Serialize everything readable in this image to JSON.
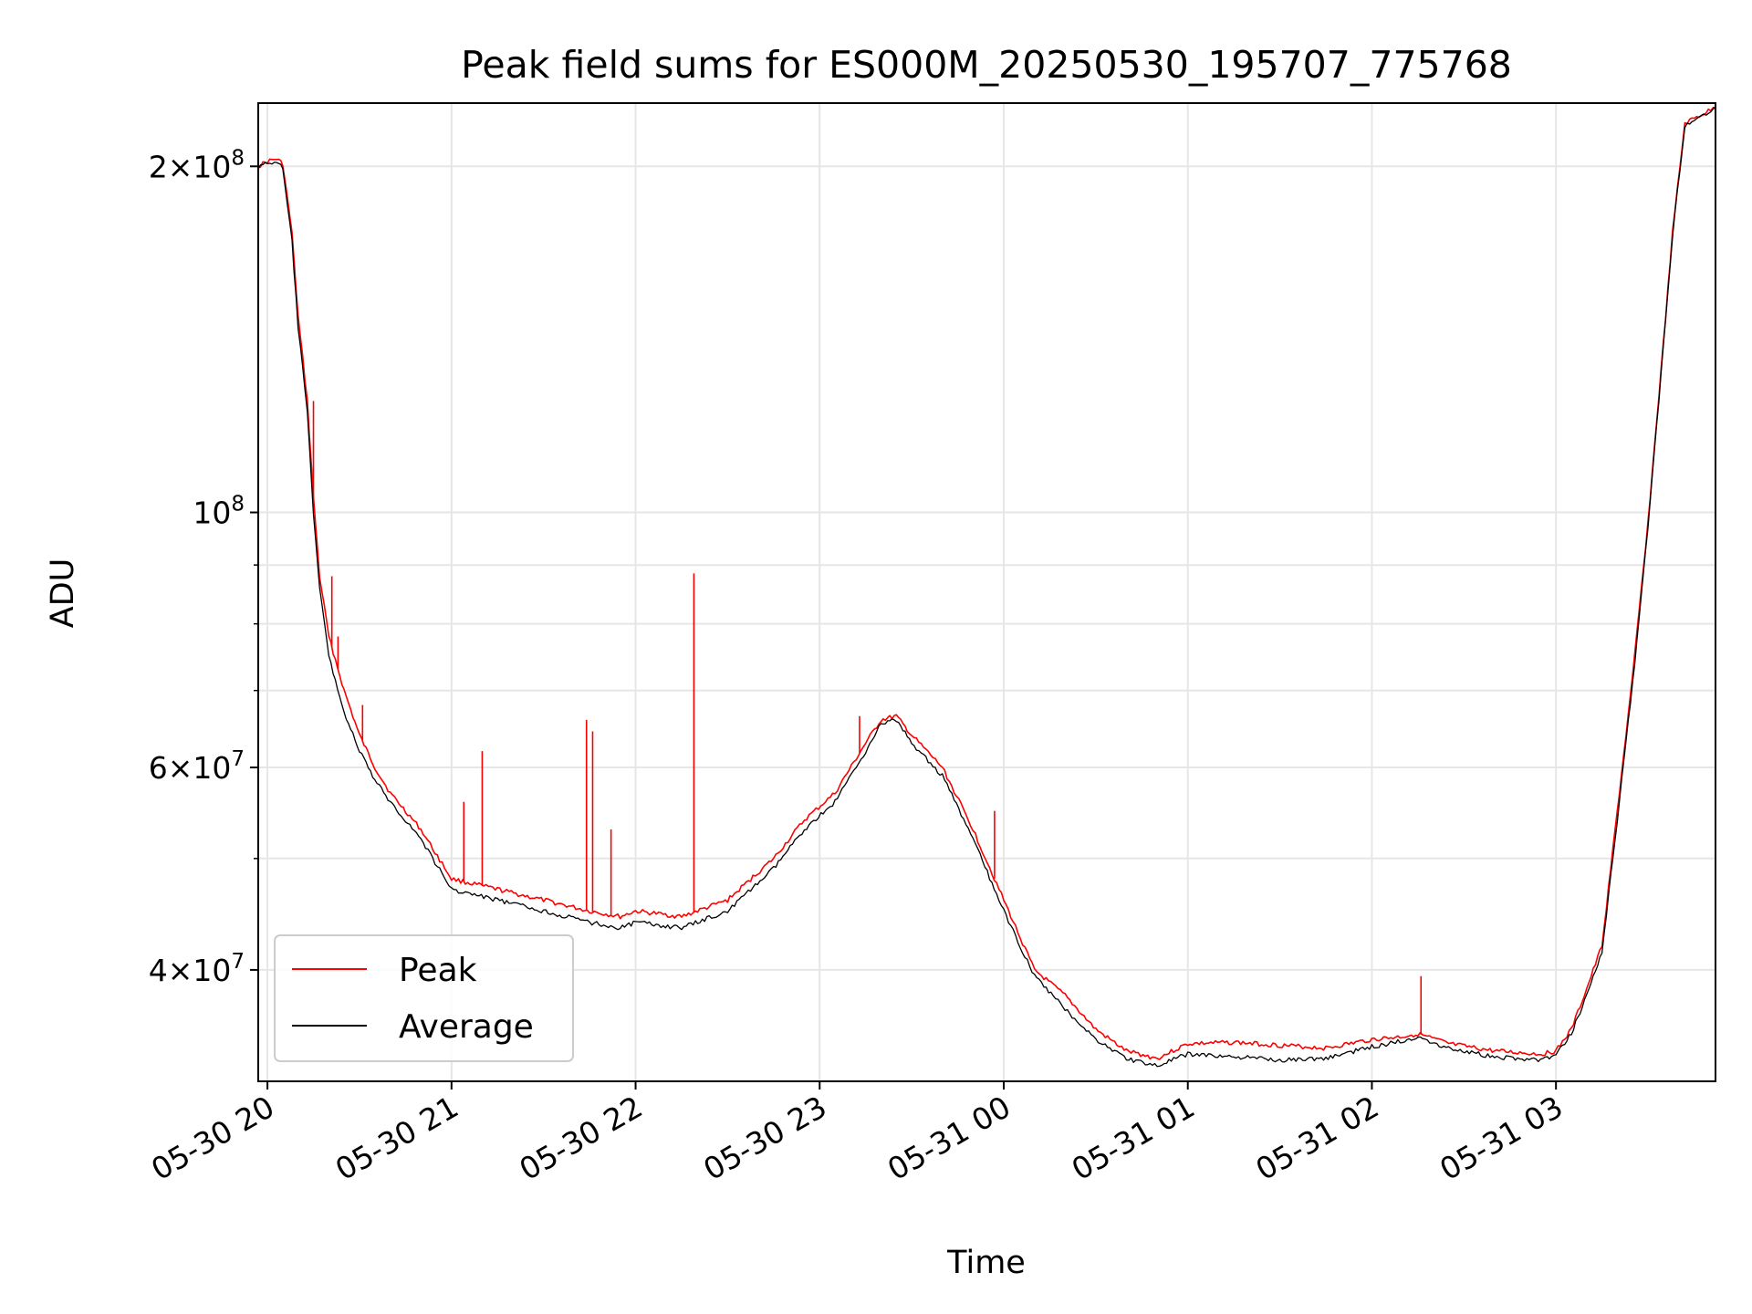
{
  "chart_data": {
    "type": "line",
    "title": "Peak field sums for ES000M_20250530_195707_775768",
    "xlabel": "Time",
    "ylabel": "ADU",
    "y_scale": "log",
    "grid": true,
    "legend_position": "lower-left",
    "xlim": [
      "2025-05-30 19:57",
      "2025-05-31 03:52"
    ],
    "ylim": [
      32000000,
      227000000
    ],
    "x_ticks": [
      "05-30 20",
      "05-30 21",
      "05-30 22",
      "05-30 23",
      "05-31 00",
      "05-31 01",
      "05-31 02",
      "05-31 03"
    ],
    "x_tick_times": [
      "2025-05-30 20:00",
      "2025-05-30 21:00",
      "2025-05-30 22:00",
      "2025-05-30 23:00",
      "2025-05-31 00:00",
      "2025-05-31 01:00",
      "2025-05-31 02:00",
      "2025-05-31 03:00"
    ],
    "y_ticks": [
      {
        "value": 40000000,
        "mantissa": "4",
        "exponent": "7"
      },
      {
        "value": 60000000,
        "mantissa": "6",
        "exponent": "7"
      },
      {
        "value": 100000000,
        "mantissa": "",
        "exponent": "8"
      },
      {
        "value": 200000000,
        "mantissa": "2",
        "exponent": "8"
      }
    ],
    "y_minor_ticks": [
      50000000,
      70000000,
      80000000,
      90000000
    ],
    "series": [
      {
        "name": "Peak",
        "color": "#ff0000",
        "x": [
          "2025-05-30 19:57",
          "2025-05-30 20:00",
          "2025-05-30 20:03",
          "2025-05-30 20:05",
          "2025-05-30 20:08",
          "2025-05-30 20:10",
          "2025-05-30 20:13",
          "2025-05-30 20:15",
          "2025-05-30 20:17",
          "2025-05-30 20:20",
          "2025-05-30 20:25",
          "2025-05-30 20:30",
          "2025-05-30 20:35",
          "2025-05-30 20:40",
          "2025-05-30 20:45",
          "2025-05-30 20:50",
          "2025-05-30 21:00",
          "2025-05-30 21:15",
          "2025-05-30 21:30",
          "2025-05-30 21:45",
          "2025-05-30 21:55",
          "2025-05-30 22:00",
          "2025-05-30 22:15",
          "2025-05-30 22:30",
          "2025-05-30 22:45",
          "2025-05-30 22:55",
          "2025-05-30 23:05",
          "2025-05-30 23:15",
          "2025-05-30 23:20",
          "2025-05-30 23:25",
          "2025-05-30 23:30",
          "2025-05-30 23:40",
          "2025-05-30 23:50",
          "2025-05-31 00:00",
          "2025-05-31 00:10",
          "2025-05-31 00:20",
          "2025-05-31 00:30",
          "2025-05-31 00:40",
          "2025-05-31 00:50",
          "2025-05-31 01:00",
          "2025-05-31 01:15",
          "2025-05-31 01:30",
          "2025-05-31 01:45",
          "2025-05-31 02:00",
          "2025-05-31 02:10",
          "2025-05-31 02:15",
          "2025-05-31 02:25",
          "2025-05-31 02:40",
          "2025-05-31 02:55",
          "2025-05-31 03:00",
          "2025-05-31 03:05",
          "2025-05-31 03:10",
          "2025-05-31 03:15",
          "2025-05-31 03:20",
          "2025-05-31 03:25",
          "2025-05-31 03:30",
          "2025-05-31 03:35",
          "2025-05-31 03:38",
          "2025-05-31 03:42",
          "2025-05-31 03:52"
        ],
        "y": [
          200000000,
          202000000,
          203000000,
          201000000,
          175000000,
          148000000,
          125000000,
          103000000,
          88000000,
          78000000,
          70000000,
          64000000,
          60000000,
          57000000,
          55000000,
          53000000,
          48000000,
          47000000,
          46000000,
          45000000,
          44500000,
          45000000,
          44500000,
          46000000,
          50000000,
          54000000,
          57000000,
          63000000,
          66000000,
          66500000,
          64000000,
          60000000,
          53000000,
          46000000,
          40000000,
          38000000,
          35500000,
          34000000,
          33500000,
          34500000,
          34600000,
          34400000,
          34200000,
          34800000,
          35000000,
          35200000,
          34500000,
          34000000,
          33800000,
          34000000,
          35500000,
          38500000,
          42000000,
          55000000,
          72000000,
          98000000,
          140000000,
          175000000,
          218000000,
          225000000
        ],
        "spikes": [
          {
            "x": "2025-05-30 20:15",
            "y": 125000000
          },
          {
            "x": "2025-05-30 20:21",
            "y": 88000000
          },
          {
            "x": "2025-05-30 20:23",
            "y": 78000000
          },
          {
            "x": "2025-05-30 20:31",
            "y": 68000000
          },
          {
            "x": "2025-05-30 21:04",
            "y": 56000000
          },
          {
            "x": "2025-05-30 21:10",
            "y": 62000000
          },
          {
            "x": "2025-05-30 21:44",
            "y": 66000000
          },
          {
            "x": "2025-05-30 21:46",
            "y": 64500000
          },
          {
            "x": "2025-05-30 21:52",
            "y": 53000000
          },
          {
            "x": "2025-05-30 22:19",
            "y": 88500000
          },
          {
            "x": "2025-05-30 23:13",
            "y": 66500000
          },
          {
            "x": "2025-05-30 23:57",
            "y": 55000000
          },
          {
            "x": "2025-05-31 02:16",
            "y": 39500000
          }
        ]
      },
      {
        "name": "Average",
        "color": "#000000",
        "x": [
          "2025-05-30 19:57",
          "2025-05-30 20:00",
          "2025-05-30 20:03",
          "2025-05-30 20:05",
          "2025-05-30 20:08",
          "2025-05-30 20:10",
          "2025-05-30 20:13",
          "2025-05-30 20:15",
          "2025-05-30 20:17",
          "2025-05-30 20:20",
          "2025-05-30 20:25",
          "2025-05-30 20:30",
          "2025-05-30 20:35",
          "2025-05-30 20:40",
          "2025-05-30 20:45",
          "2025-05-30 20:50",
          "2025-05-30 21:00",
          "2025-05-30 21:15",
          "2025-05-30 21:30",
          "2025-05-30 21:45",
          "2025-05-30 21:55",
          "2025-05-30 22:00",
          "2025-05-30 22:15",
          "2025-05-30 22:30",
          "2025-05-30 22:45",
          "2025-05-30 22:55",
          "2025-05-30 23:05",
          "2025-05-30 23:15",
          "2025-05-30 23:20",
          "2025-05-30 23:25",
          "2025-05-30 23:30",
          "2025-05-30 23:40",
          "2025-05-30 23:50",
          "2025-05-31 00:00",
          "2025-05-31 00:10",
          "2025-05-31 00:20",
          "2025-05-31 00:30",
          "2025-05-31 00:40",
          "2025-05-31 00:50",
          "2025-05-31 01:00",
          "2025-05-31 01:15",
          "2025-05-31 01:30",
          "2025-05-31 01:45",
          "2025-05-31 02:00",
          "2025-05-31 02:10",
          "2025-05-31 02:15",
          "2025-05-31 02:25",
          "2025-05-31 02:40",
          "2025-05-31 02:55",
          "2025-05-31 03:00",
          "2025-05-31 03:05",
          "2025-05-31 03:10",
          "2025-05-31 03:15",
          "2025-05-31 03:20",
          "2025-05-31 03:25",
          "2025-05-31 03:30",
          "2025-05-31 03:35",
          "2025-05-31 03:38",
          "2025-05-31 03:42",
          "2025-05-31 03:52"
        ],
        "y": [
          200000000,
          201000000,
          202000000,
          199000000,
          172000000,
          145000000,
          122000000,
          100000000,
          86000000,
          75000000,
          67000000,
          62000000,
          58500000,
          56000000,
          54000000,
          52000000,
          47000000,
          46000000,
          45000000,
          44000000,
          43500000,
          44000000,
          43500000,
          45000000,
          49000000,
          53000000,
          56000000,
          62000000,
          65500000,
          66000000,
          63000000,
          59000000,
          52000000,
          45000000,
          39500000,
          37000000,
          34800000,
          33500000,
          33000000,
          33800000,
          33600000,
          33400000,
          33500000,
          34300000,
          34700000,
          35000000,
          34200000,
          33600000,
          33400000,
          33700000,
          35200000,
          38000000,
          41500000,
          54000000,
          71000000,
          97000000,
          139000000,
          174000000,
          217000000,
          225000000
        ]
      }
    ]
  }
}
